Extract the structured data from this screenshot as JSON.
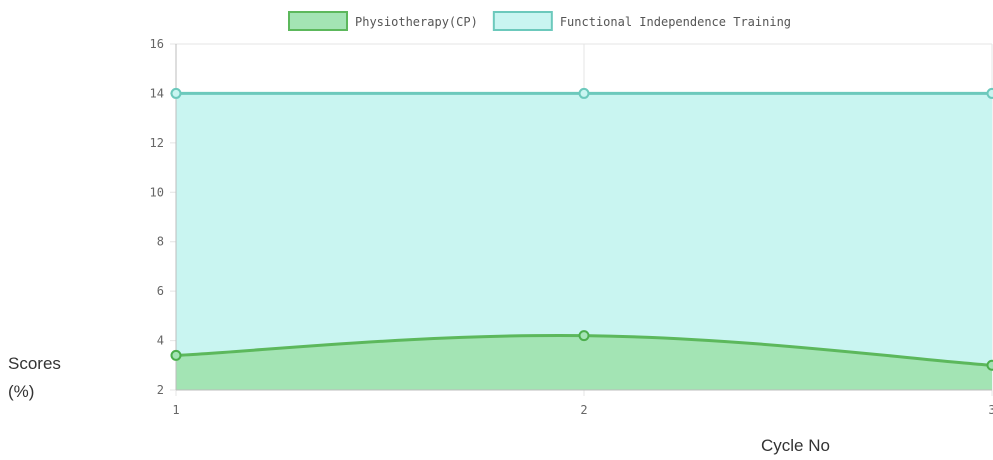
{
  "y_axis_title": {
    "line1": "Scores",
    "line2": "(%)"
  },
  "x_axis_title": "Cycle No",
  "chart_data": {
    "type": "area",
    "x": [
      1,
      2,
      3
    ],
    "xlabel": "Cycle No",
    "ylabel": "Scores (%)",
    "ylim": [
      2,
      16
    ],
    "y_ticks": [
      2,
      4,
      6,
      8,
      10,
      12,
      14,
      16
    ],
    "grid": true,
    "legend_position": "top-center",
    "series": [
      {
        "name": "Physiotherapy(CP)",
        "values": [
          3.4,
          4.2,
          3.0
        ],
        "fill": "#a3e4b4",
        "stroke": "#5cb85c",
        "point": "#4cae4c"
      },
      {
        "name": "Functional Independence Training",
        "values": [
          14,
          14,
          14
        ],
        "fill": "#c9f5f1",
        "stroke": "#6cc9bc",
        "point": "#6cc9bc"
      }
    ]
  }
}
